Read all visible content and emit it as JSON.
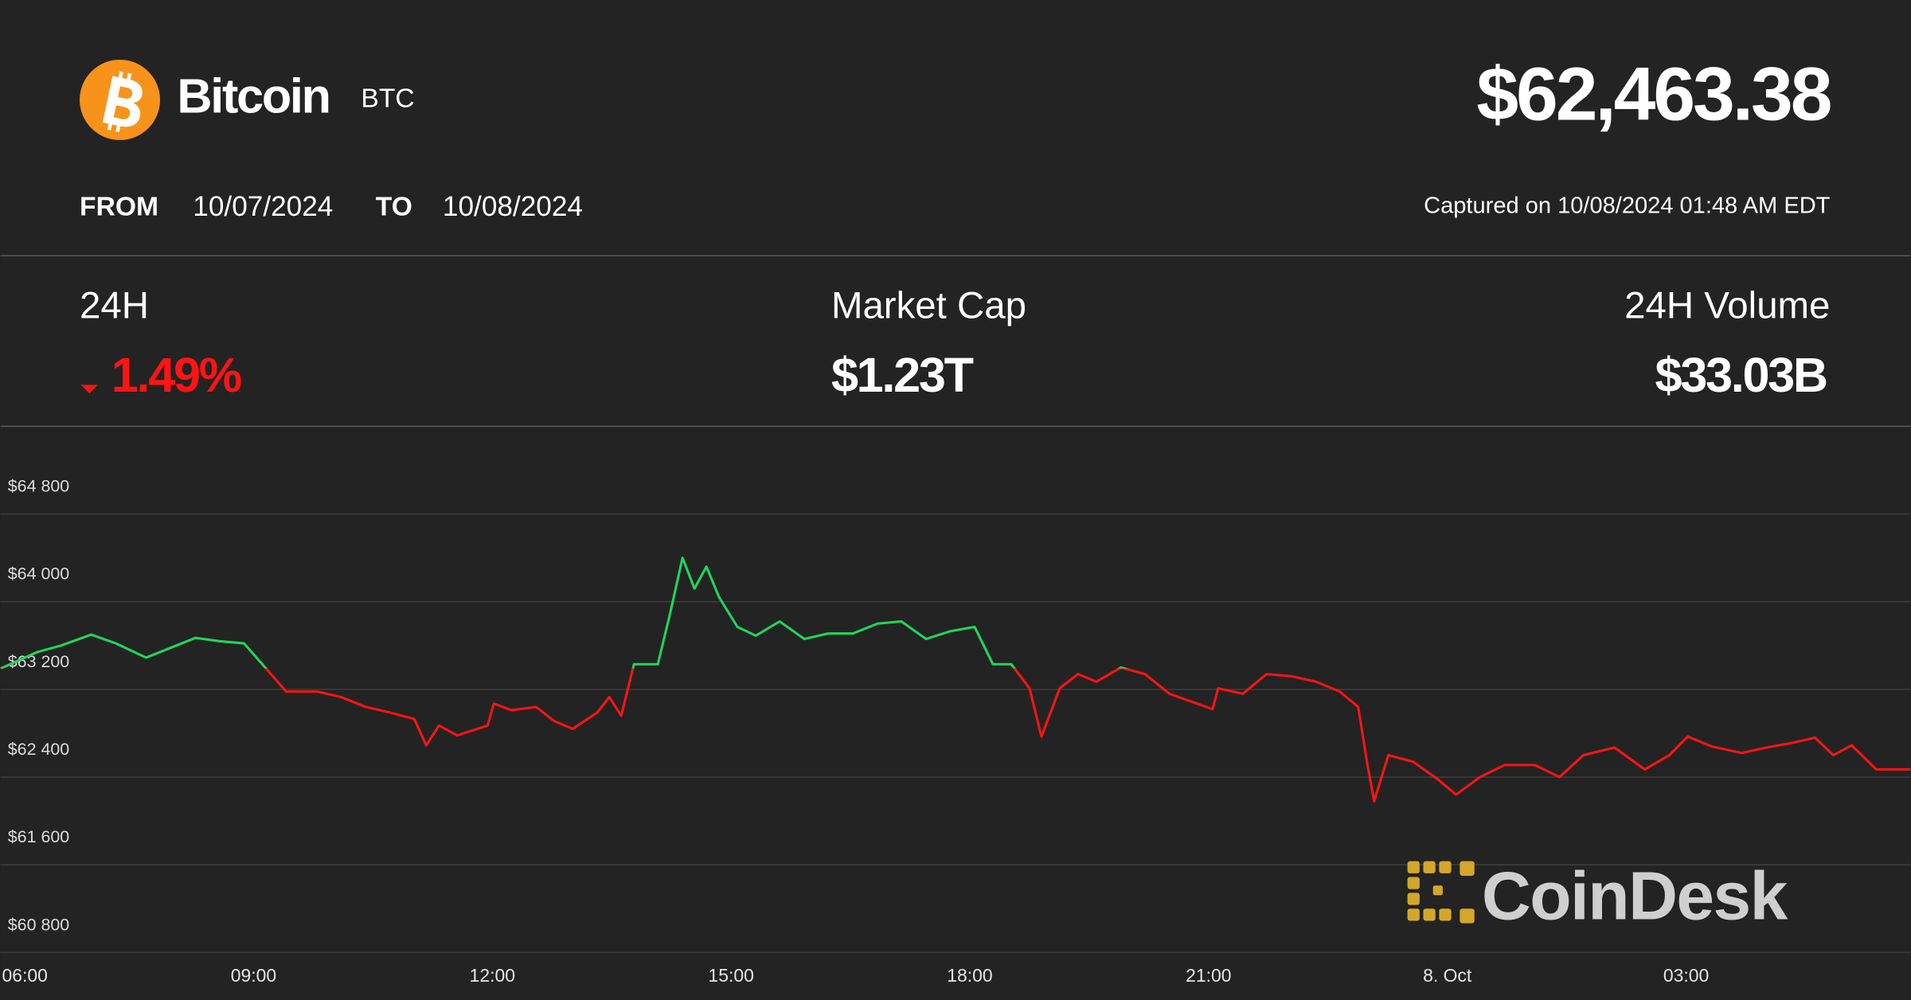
{
  "header": {
    "name": "Bitcoin",
    "symbol": "BTC",
    "price": "$62,463.38",
    "from_label": "FROM",
    "from_date": "10/07/2024",
    "to_label": "TO",
    "to_date": "10/08/2024",
    "captured": "Captured on 10/08/2024 01:48 AM EDT"
  },
  "stats": {
    "change_label": "24H",
    "change": "1.49%",
    "market_cap_label": "Market Cap",
    "market_cap": "$1.23T",
    "volume_label": "24H Volume",
    "volume": "$33.03B"
  },
  "watermark": "CoinDesk",
  "chart_data": {
    "type": "line",
    "up_color": "#1ed75a",
    "down_color": "#ff1414",
    "grid": true,
    "xlim": [
      5.82,
      29.82
    ],
    "ylim": [
      60800,
      65600
    ],
    "xticks": [
      {
        "value": 6,
        "label": "06:00"
      },
      {
        "value": 9,
        "label": "09:00"
      },
      {
        "value": 12,
        "label": "12:00"
      },
      {
        "value": 15,
        "label": "15:00"
      },
      {
        "value": 18,
        "label": "18:00"
      },
      {
        "value": 21,
        "label": "21:00"
      },
      {
        "value": 24,
        "label": "8. Oct"
      },
      {
        "value": 27,
        "label": "03:00"
      }
    ],
    "yticks": [
      {
        "value": 60800,
        "label": "$60 800"
      },
      {
        "value": 61600,
        "label": "$61 600"
      },
      {
        "value": 62400,
        "label": "$62 400"
      },
      {
        "value": 63200,
        "label": "$63 200"
      },
      {
        "value": 64000,
        "label": "$64 000"
      },
      {
        "value": 64800,
        "label": "$64 800"
      }
    ],
    "x": [
      5.82,
      6.28,
      6.58,
      6.96,
      7.27,
      7.65,
      7.96,
      8.27,
      8.57,
      8.88,
      9.11,
      9.41,
      9.8,
      10.1,
      10.41,
      10.71,
      11.02,
      11.17,
      11.33,
      11.56,
      11.94,
      12.02,
      12.24,
      12.55,
      12.78,
      13.01,
      13.32,
      13.47,
      13.62,
      13.78,
      14.08,
      14.23,
      14.39,
      14.54,
      14.69,
      14.85,
      15.08,
      15.31,
      15.61,
      15.92,
      16.22,
      16.53,
      16.84,
      17.14,
      17.45,
      17.75,
      18.06,
      18.29,
      18.52,
      18.75,
      18.9,
      19.13,
      19.36,
      19.59,
      19.9,
      20.2,
      20.51,
      20.74,
      21.05,
      21.12,
      21.43,
      21.73,
      22.04,
      22.35,
      22.65,
      22.88,
      22.99,
      23.08,
      23.26,
      23.57,
      23.88,
      24.11,
      24.41,
      24.72,
      25.1,
      25.41,
      25.71,
      26.1,
      26.48,
      26.79,
      27.02,
      27.32,
      27.7,
      28.01,
      28.32,
      28.62,
      28.85,
      29.08,
      29.39,
      29.82
    ],
    "values": [
      63390,
      63540,
      63600,
      63700,
      63620,
      63490,
      63580,
      63670,
      63640,
      63620,
      63430,
      63180,
      63180,
      63130,
      63040,
      62990,
      62930,
      62690,
      62870,
      62780,
      62870,
      63070,
      63010,
      63040,
      62910,
      62840,
      62990,
      63130,
      62960,
      63430,
      63430,
      63880,
      64400,
      64120,
      64320,
      64040,
      63770,
      63690,
      63820,
      63660,
      63710,
      63710,
      63800,
      63820,
      63660,
      63730,
      63770,
      63430,
      63430,
      63210,
      62770,
      63210,
      63340,
      63270,
      63400,
      63340,
      63160,
      63100,
      63020,
      63210,
      63160,
      63340,
      63320,
      63270,
      63180,
      63040,
      62540,
      62180,
      62600,
      62540,
      62380,
      62240,
      62400,
      62510,
      62510,
      62400,
      62600,
      62670,
      62470,
      62600,
      62770,
      62680,
      62620,
      62670,
      62710,
      62760,
      62600,
      62690,
      62470,
      62470
    ]
  }
}
